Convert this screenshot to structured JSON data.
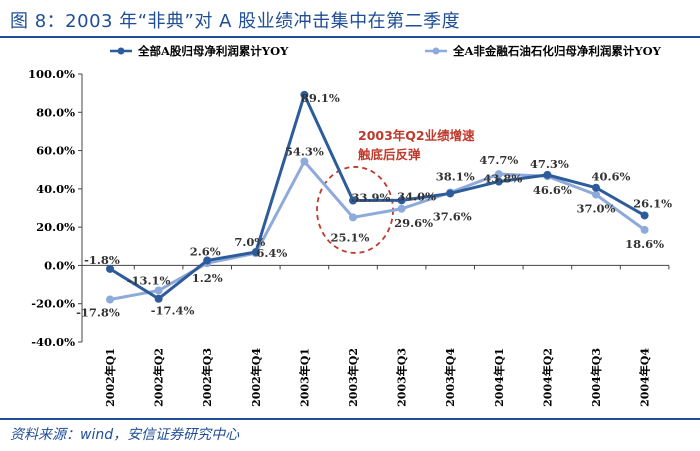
{
  "figure": {
    "title": "图 8：2003 年“非典”对 A 股业绩冲击集中在第二季度",
    "source": "资料来源：wind，安信证券研究中心"
  },
  "chart_data": {
    "type": "line",
    "categories": [
      "2002年Q1",
      "2002年Q2",
      "2002年Q3",
      "2002年Q4",
      "2003年Q1",
      "2003年Q2",
      "2003年Q3",
      "2003年Q4",
      "2004年Q1",
      "2004年Q2",
      "2004年Q3",
      "2004年Q4"
    ],
    "series": [
      {
        "name": "全部A股归母净利润累计YOY",
        "color": "#2e5c9a",
        "values": [
          -1.8,
          -17.4,
          2.6,
          7.0,
          89.1,
          33.9,
          34.0,
          37.6,
          43.8,
          47.3,
          40.6,
          26.1
        ],
        "labels": [
          "-1.8%",
          "-17.4%",
          "2.6%",
          "7.0%",
          "89.1%",
          "33.9%",
          "34.0%",
          "37.6%",
          "43.8%",
          "47.3%",
          "40.6%",
          "26.1%"
        ]
      },
      {
        "name": "全A非金融石油石化归母净利润累计YOY",
        "color": "#8eaadb",
        "values": [
          -17.8,
          -13.1,
          1.2,
          6.4,
          54.3,
          25.1,
          29.6,
          38.1,
          47.7,
          46.6,
          37.0,
          18.6
        ],
        "labels": [
          "-17.8%",
          "-13.1%",
          "1.2%",
          "6.4%",
          "54.3%",
          "25.1%",
          "29.6%",
          "38.1%",
          "47.7%",
          "46.6%",
          "37.0%",
          "18.6%"
        ]
      }
    ],
    "ylim": [
      -40,
      100
    ],
    "yticks": [
      -40,
      -20,
      0,
      20,
      40,
      60,
      80,
      100
    ],
    "ytick_labels": [
      "-40.0%",
      "-20.0%",
      "0.0%",
      "20.0%",
      "40.0%",
      "60.0%",
      "80.0%",
      "100.0%"
    ],
    "grid": false,
    "legend_position": "top",
    "annotation": {
      "lines": [
        "2003年Q2业绩增速",
        "触底后反弹"
      ],
      "color": "#c0392b",
      "target_category": "2003年Q2"
    }
  }
}
